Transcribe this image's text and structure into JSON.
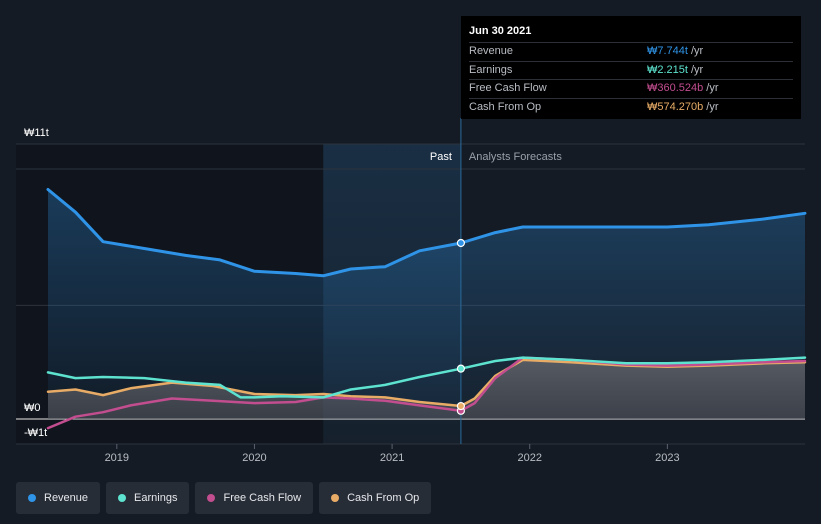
{
  "chart_data": {
    "type": "line",
    "y_unit_prefix": "₩",
    "y_tick_labels": [
      "₩11t",
      "₩0",
      "-₩1t"
    ],
    "ylim": [
      -1,
      11
    ],
    "x_tick_labels": [
      "2019",
      "2020",
      "2021",
      "2022",
      "2023"
    ],
    "x_range": [
      2018.5,
      2024.0
    ],
    "x_ticks": [
      2019,
      2020,
      2021,
      2022,
      2023
    ],
    "past_label": "Past",
    "forecast_label": "Analysts Forecasts",
    "past_shade_start": 2020.5,
    "divider_x": 2021.5,
    "series": [
      {
        "name": "Revenue",
        "color": "#2f94e7",
        "fill": true,
        "points": [
          [
            2018.5,
            10.1
          ],
          [
            2018.7,
            9.1
          ],
          [
            2018.9,
            7.8
          ],
          [
            2019.2,
            7.5
          ],
          [
            2019.5,
            7.2
          ],
          [
            2019.75,
            7.0
          ],
          [
            2020.0,
            6.5
          ],
          [
            2020.3,
            6.4
          ],
          [
            2020.5,
            6.3
          ],
          [
            2020.7,
            6.6
          ],
          [
            2020.95,
            6.7
          ],
          [
            2021.2,
            7.4
          ],
          [
            2021.5,
            7.744
          ],
          [
            2021.75,
            8.2
          ],
          [
            2021.95,
            8.45
          ],
          [
            2022.5,
            8.45
          ],
          [
            2023.0,
            8.45
          ],
          [
            2023.3,
            8.55
          ],
          [
            2023.7,
            8.8
          ],
          [
            2024.0,
            9.05
          ]
        ]
      },
      {
        "name": "Earnings",
        "color": "#5de3cf",
        "fill": false,
        "points": [
          [
            2018.5,
            2.05
          ],
          [
            2018.7,
            1.8
          ],
          [
            2018.9,
            1.85
          ],
          [
            2019.2,
            1.8
          ],
          [
            2019.5,
            1.6
          ],
          [
            2019.75,
            1.5
          ],
          [
            2019.9,
            0.95
          ],
          [
            2020.0,
            0.95
          ],
          [
            2020.2,
            1.0
          ],
          [
            2020.5,
            0.95
          ],
          [
            2020.7,
            1.3
          ],
          [
            2020.95,
            1.5
          ],
          [
            2021.2,
            1.85
          ],
          [
            2021.5,
            2.215
          ],
          [
            2021.75,
            2.55
          ],
          [
            2021.95,
            2.7
          ],
          [
            2022.3,
            2.6
          ],
          [
            2022.7,
            2.45
          ],
          [
            2023.0,
            2.45
          ],
          [
            2023.3,
            2.5
          ],
          [
            2023.7,
            2.6
          ],
          [
            2024.0,
            2.7
          ]
        ]
      },
      {
        "name": "Free Cash Flow",
        "color": "#c24d8f",
        "fill": false,
        "points": [
          [
            2018.5,
            -0.4
          ],
          [
            2018.7,
            0.1
          ],
          [
            2018.9,
            0.3
          ],
          [
            2019.1,
            0.6
          ],
          [
            2019.4,
            0.9
          ],
          [
            2019.7,
            0.8
          ],
          [
            2020.0,
            0.7
          ],
          [
            2020.3,
            0.75
          ],
          [
            2020.5,
            0.95
          ],
          [
            2020.7,
            0.9
          ],
          [
            2020.95,
            0.8
          ],
          [
            2021.2,
            0.6
          ],
          [
            2021.5,
            0.36
          ],
          [
            2021.6,
            0.7
          ],
          [
            2021.75,
            1.8
          ],
          [
            2021.95,
            2.7
          ],
          [
            2022.3,
            2.6
          ],
          [
            2022.7,
            2.4
          ],
          [
            2023.0,
            2.35
          ],
          [
            2023.3,
            2.4
          ],
          [
            2023.7,
            2.5
          ],
          [
            2024.0,
            2.55
          ]
        ]
      },
      {
        "name": "Cash From Op",
        "color": "#e8ac66",
        "fill": true,
        "points": [
          [
            2018.5,
            1.2
          ],
          [
            2018.7,
            1.3
          ],
          [
            2018.9,
            1.05
          ],
          [
            2019.1,
            1.35
          ],
          [
            2019.4,
            1.6
          ],
          [
            2019.7,
            1.45
          ],
          [
            2020.0,
            1.1
          ],
          [
            2020.3,
            1.05
          ],
          [
            2020.5,
            1.1
          ],
          [
            2020.7,
            1.0
          ],
          [
            2020.95,
            0.95
          ],
          [
            2021.2,
            0.75
          ],
          [
            2021.5,
            0.57
          ],
          [
            2021.6,
            0.9
          ],
          [
            2021.75,
            1.9
          ],
          [
            2021.95,
            2.6
          ],
          [
            2022.3,
            2.5
          ],
          [
            2022.7,
            2.35
          ],
          [
            2023.0,
            2.3
          ],
          [
            2023.3,
            2.35
          ],
          [
            2023.7,
            2.45
          ],
          [
            2024.0,
            2.5
          ]
        ]
      }
    ],
    "highlight_x": 2021.5
  },
  "tooltip": {
    "date": "Jun 30 2021",
    "rows": [
      {
        "label": "Revenue",
        "value": "₩7.744t",
        "unit": "/yr",
        "color": "#2f94e7"
      },
      {
        "label": "Earnings",
        "value": "₩2.215t",
        "unit": "/yr",
        "color": "#5de3cf"
      },
      {
        "label": "Free Cash Flow",
        "value": "₩360.524b",
        "unit": "/yr",
        "color": "#c24d8f"
      },
      {
        "label": "Cash From Op",
        "value": "₩574.270b",
        "unit": "/yr",
        "color": "#e8ac66"
      }
    ]
  },
  "legend": [
    {
      "label": "Revenue",
      "color": "#2f94e7"
    },
    {
      "label": "Earnings",
      "color": "#5de3cf"
    },
    {
      "label": "Free Cash Flow",
      "color": "#c24d8f"
    },
    {
      "label": "Cash From Op",
      "color": "#e8ac66"
    }
  ]
}
